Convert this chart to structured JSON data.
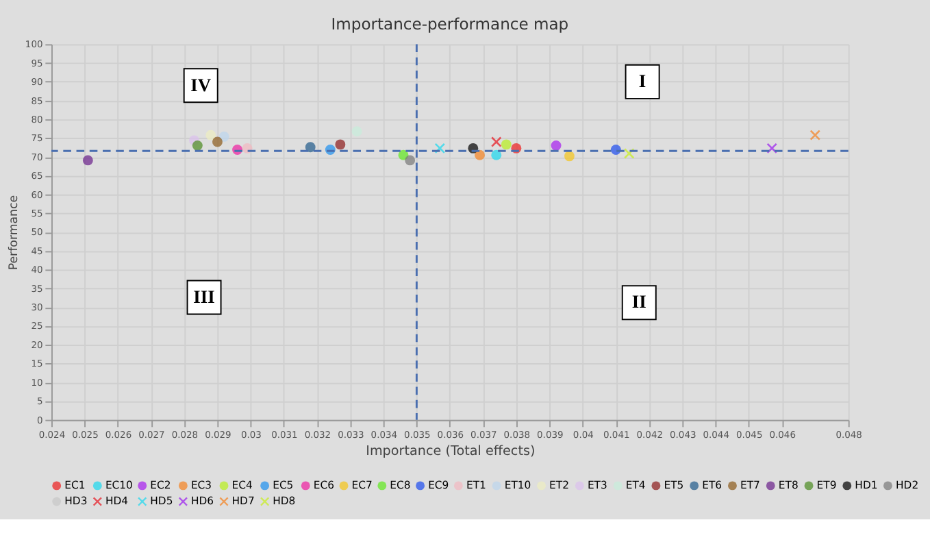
{
  "chart_data": {
    "type": "scatter",
    "title": "Importance-performance map",
    "xlabel": "Importance (Total effects)",
    "ylabel": "Performance",
    "xlim": [
      0.024,
      0.048
    ],
    "xticks": [
      0.024,
      0.025,
      0.026,
      0.027,
      0.028,
      0.029,
      0.03,
      0.031,
      0.032,
      0.033,
      0.034,
      0.035,
      0.036,
      0.037,
      0.038,
      0.039,
      0.04,
      0.041,
      0.042,
      0.043,
      0.044,
      0.045,
      0.046,
      0.048
    ],
    "ylim": [
      0,
      100
    ],
    "yticks": [
      0,
      5,
      10,
      15,
      20,
      25,
      30,
      35,
      40,
      45,
      50,
      55,
      60,
      65,
      70,
      75,
      80,
      85,
      90,
      95,
      100
    ],
    "grid": true,
    "legend": "bottom",
    "series": [
      {
        "name": "EC1",
        "color": "#ee1c1c",
        "marker": "circle",
        "x": [
          0.038
        ],
        "values": [
          72.3
        ]
      },
      {
        "name": "EC10",
        "color": "#1ad8f0",
        "marker": "circle",
        "x": [
          0.0374
        ],
        "values": [
          70.5
        ]
      },
      {
        "name": "EC2",
        "color": "#a61cf0",
        "marker": "circle",
        "x": [
          0.0392
        ],
        "values": [
          73.0
        ]
      },
      {
        "name": "EC3",
        "color": "#f58220",
        "marker": "circle",
        "x": [
          0.0369
        ],
        "values": [
          70.5
        ]
      },
      {
        "name": "EC4",
        "color": "#b8f01c",
        "marker": "circle",
        "x": [
          0.0377
        ],
        "values": [
          73.3
        ]
      },
      {
        "name": "EC5",
        "color": "#1c90f0",
        "marker": "circle",
        "x": [
          0.0324
        ],
        "values": [
          71.9
        ]
      },
      {
        "name": "EC6",
        "color": "#f01ca0",
        "marker": "circle",
        "x": [
          0.0296
        ],
        "values": [
          71.9
        ]
      },
      {
        "name": "EC7",
        "color": "#f5c518",
        "marker": "circle",
        "x": [
          0.0396
        ],
        "values": [
          70.2
        ]
      },
      {
        "name": "EC8",
        "color": "#5ee81c",
        "marker": "circle",
        "x": [
          0.0346
        ],
        "values": [
          70.5
        ]
      },
      {
        "name": "EC9",
        "color": "#1c4cf0",
        "marker": "circle",
        "x": [
          0.041
        ],
        "values": [
          71.9
        ]
      },
      {
        "name": "ET1",
        "color": "#f2b8c0",
        "marker": "circle",
        "x": [
          0.0299
        ],
        "values": [
          72.3
        ]
      },
      {
        "name": "ET10",
        "color": "#bcd6ee",
        "marker": "circle",
        "x": [
          0.0292
        ],
        "values": [
          75.4
        ]
      },
      {
        "name": "ET2",
        "color": "#eeeec0",
        "marker": "circle",
        "x": [
          0.0288
        ],
        "values": [
          75.8
        ]
      },
      {
        "name": "ET3",
        "color": "#dcc0ee",
        "marker": "circle",
        "x": [
          0.0283
        ],
        "values": [
          74.4
        ]
      },
      {
        "name": "ET4",
        "color": "#c8eedc",
        "marker": "circle",
        "x": [
          0.0332
        ],
        "values": [
          76.8
        ]
      },
      {
        "name": "ET5",
        "color": "#8b1a1a",
        "marker": "circle",
        "x": [
          0.0327
        ],
        "values": [
          73.3
        ]
      },
      {
        "name": "ET6",
        "color": "#1f5a8a",
        "marker": "circle",
        "x": [
          0.0318
        ],
        "values": [
          72.6
        ]
      },
      {
        "name": "ET7",
        "color": "#8b5a1a",
        "marker": "circle",
        "x": [
          0.029
        ],
        "values": [
          74.0
        ]
      },
      {
        "name": "ET8",
        "color": "#6a1f8a",
        "marker": "circle",
        "x": [
          0.0251
        ],
        "values": [
          69.1
        ]
      },
      {
        "name": "ET9",
        "color": "#4a8a1f",
        "marker": "circle",
        "x": [
          0.0284
        ],
        "values": [
          73.0
        ]
      },
      {
        "name": "HD1",
        "color": "#000000",
        "marker": "circle",
        "x": [
          0.0367
        ],
        "values": [
          72.3
        ]
      },
      {
        "name": "HD2",
        "color": "#777777",
        "marker": "circle",
        "x": [
          0.0348
        ],
        "values": [
          69.1
        ]
      },
      {
        "name": "HD3",
        "color": "#c8c8c8",
        "marker": "circle",
        "x": [
          null
        ],
        "values": [
          null
        ]
      },
      {
        "name": "HD4",
        "color": "#e8141e",
        "marker": "cross",
        "x": [
          0.0374
        ],
        "values": [
          74.0
        ]
      },
      {
        "name": "HD5",
        "color": "#1ad8f0",
        "marker": "cross",
        "x": [
          0.0357
        ],
        "values": [
          72.3
        ]
      },
      {
        "name": "HD6",
        "color": "#9a1cf0",
        "marker": "cross",
        "x": [
          0.0457
        ],
        "values": [
          72.3
        ]
      },
      {
        "name": "HD7",
        "color": "#f58220",
        "marker": "cross",
        "x": [
          0.047
        ],
        "values": [
          75.8
        ]
      },
      {
        "name": "HD8",
        "color": "#c8f01c",
        "marker": "cross",
        "x": [
          0.0414
        ],
        "values": [
          70.9
        ]
      }
    ],
    "ref_lines": [
      {
        "axis": "x",
        "value": 0.035,
        "color": "#4a6fb0",
        "line_style": "dashed"
      },
      {
        "axis": "y",
        "value": 71.6,
        "color": "#4a6fb0",
        "line_style": "dashed"
      }
    ],
    "annotations": [
      {
        "text": "IV",
        "x": 0.0285,
        "y": 89
      },
      {
        "text": "I",
        "x": 0.0418,
        "y": 90
      },
      {
        "text": "III",
        "x": 0.0286,
        "y": 32.6
      },
      {
        "text": "II",
        "x": 0.0417,
        "y": 31.2
      }
    ]
  }
}
